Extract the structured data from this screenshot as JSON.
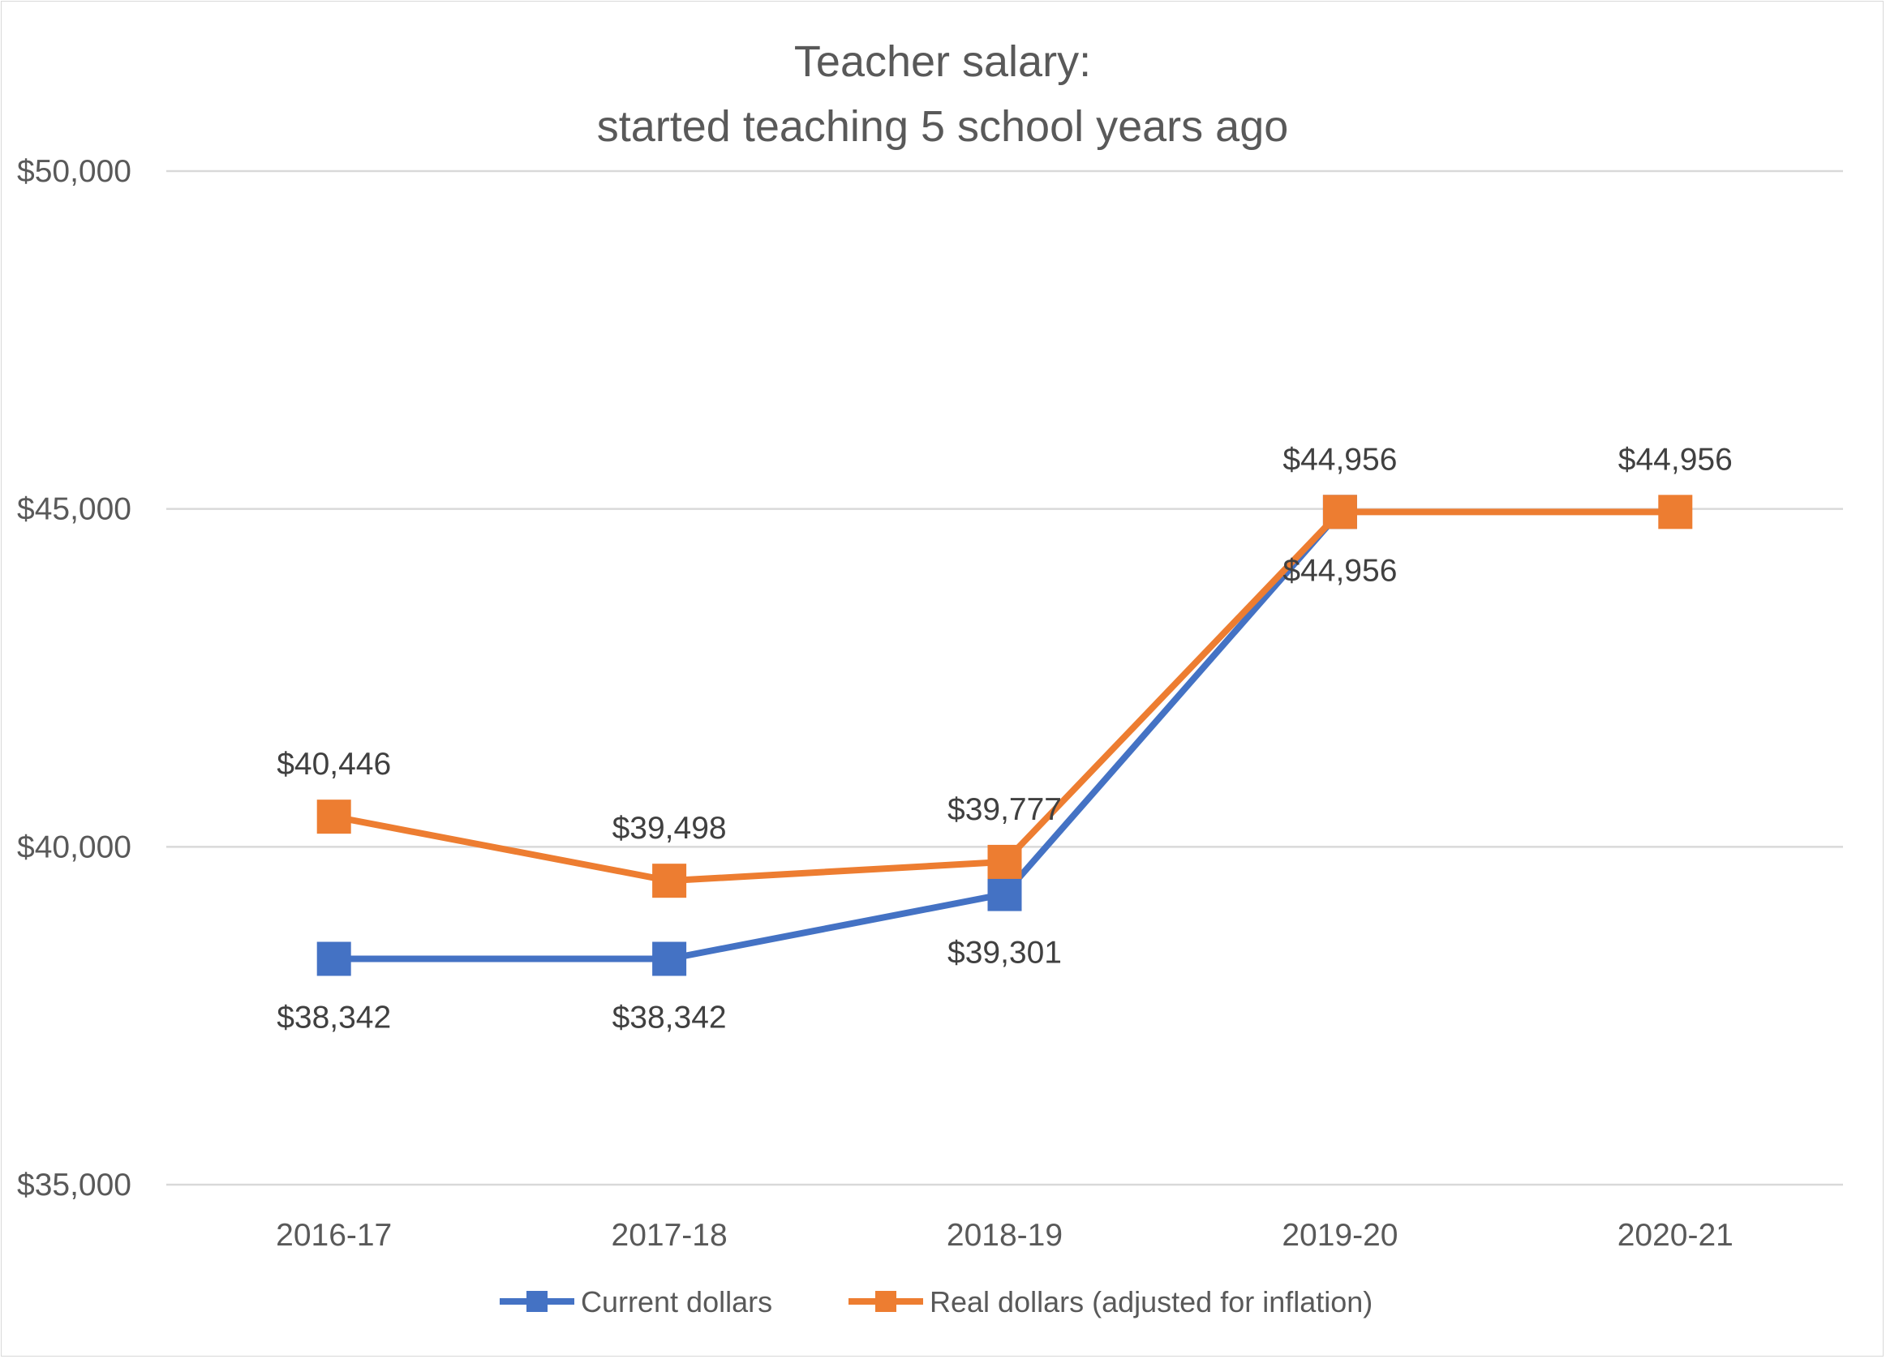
{
  "chart_data": {
    "type": "line",
    "title": [
      "Teacher salary:",
      "started teaching 5 school years ago"
    ],
    "categories": [
      "2016-17",
      "2017-18",
      "2018-19",
      "2019-20",
      "2020-21"
    ],
    "series": [
      {
        "name": "Current dollars",
        "color": "#4472c4",
        "values": [
          38342,
          38342,
          39301,
          44956,
          null
        ],
        "labels": [
          "$38,342",
          "$38,342",
          "$39,301",
          "$44,956",
          null
        ],
        "label_position": "below"
      },
      {
        "name": "Real dollars (adjusted for inflation)",
        "color": "#ed7d31",
        "values": [
          40446,
          39498,
          39777,
          44956,
          44956
        ],
        "labels": [
          "$40,446",
          "$39,498",
          "$39,777",
          "$44,956",
          "$44,956"
        ],
        "label_position": "above"
      }
    ],
    "y_ticks": [
      35000,
      40000,
      45000,
      50000
    ],
    "y_tick_labels": [
      "$35,000",
      "$40,000",
      "$45,000",
      "$50,000"
    ],
    "ylim": [
      35000,
      50000
    ],
    "xlabel": "",
    "ylabel": "",
    "grid": true,
    "legend_position": "bottom",
    "marker": "square"
  }
}
